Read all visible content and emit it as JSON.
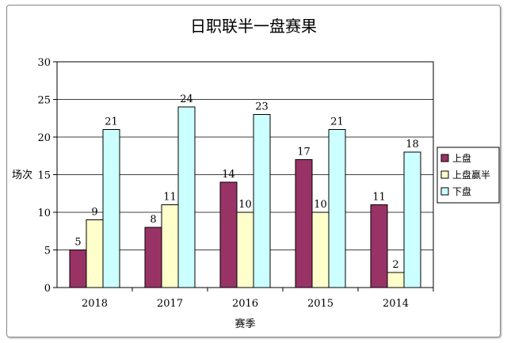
{
  "chart_data": {
    "type": "bar",
    "title": "日职联半一盘赛果",
    "xlabel": "赛季",
    "ylabel": "场次",
    "categories": [
      "2018",
      "2017",
      "2016",
      "2015",
      "2014"
    ],
    "ylim": [
      0,
      30
    ],
    "yticks": [
      0,
      5,
      10,
      15,
      20,
      25,
      30
    ],
    "grid": true,
    "legend_position": "right",
    "series": [
      {
        "name": "上盘",
        "color": "#993366",
        "values": [
          5,
          8,
          14,
          17,
          11
        ]
      },
      {
        "name": "上盘赢半",
        "color": "#FFFFCC",
        "values": [
          9,
          11,
          10,
          10,
          2
        ]
      },
      {
        "name": "下盘",
        "color": "#CCFFFF",
        "values": [
          21,
          24,
          23,
          21,
          18
        ]
      }
    ]
  }
}
